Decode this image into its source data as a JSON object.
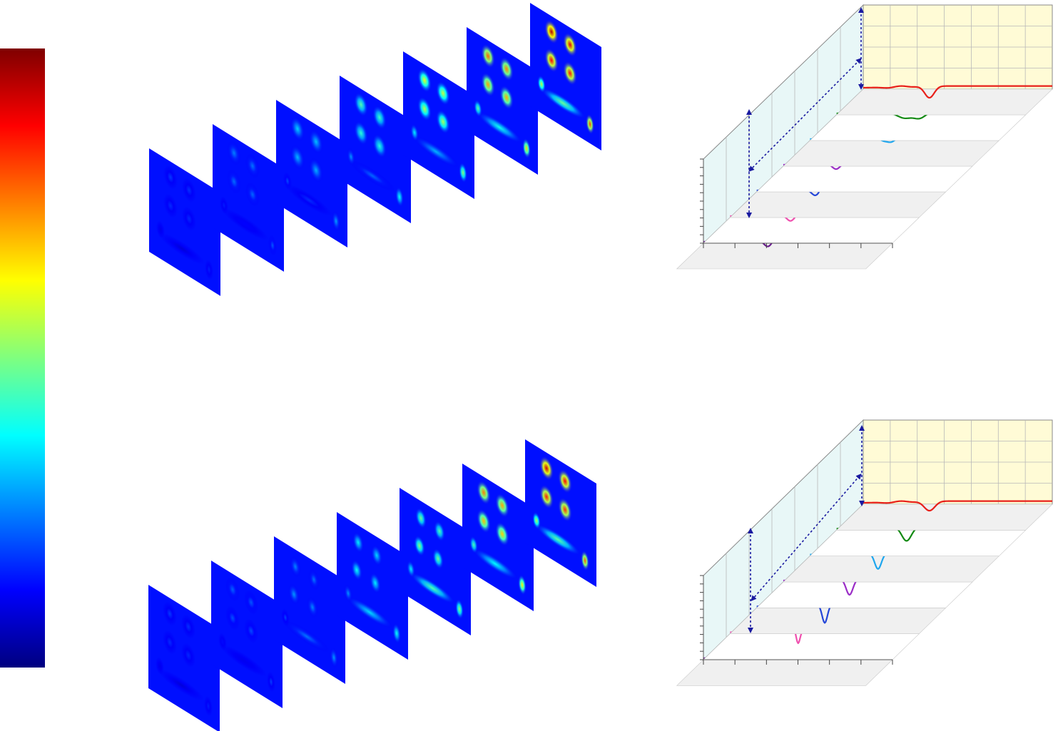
{
  "colormap": [
    "#00007f",
    "#0000ff",
    "#007fff",
    "#00ffff",
    "#7fff7f",
    "#ffff00",
    "#ff7f00",
    "#ff0000",
    "#7f0000"
  ],
  "colors": {
    "back_wall": "#fffbd6",
    "side_wall": "#e8f7f7",
    "floor_strip": "#f0f0f0",
    "grid_line": "#b8b8b8",
    "arrow": "#1a1aa0"
  },
  "field_map_groups": [
    {
      "id": "top",
      "frames": [
        {
          "intensity": 0.18,
          "mode": "low"
        },
        {
          "intensity": 0.25,
          "mode": "low"
        },
        {
          "intensity": 0.33,
          "mode": "pair"
        },
        {
          "intensity": 0.45,
          "mode": "pair"
        },
        {
          "intensity": 0.6,
          "mode": "pair"
        },
        {
          "intensity": 0.78,
          "mode": "pair"
        },
        {
          "intensity": 0.95,
          "mode": "pair"
        }
      ]
    },
    {
      "id": "bottom",
      "frames": [
        {
          "intensity": 0.18,
          "mode": "low"
        },
        {
          "intensity": 0.22,
          "mode": "low"
        },
        {
          "intensity": 0.32,
          "mode": "bar"
        },
        {
          "intensity": 0.45,
          "mode": "bar"
        },
        {
          "intensity": 0.6,
          "mode": "bar"
        },
        {
          "intensity": 0.75,
          "mode": "pair"
        },
        {
          "intensity": 0.92,
          "mode": "pair"
        }
      ]
    }
  ],
  "chart_data": [
    {
      "type": "line",
      "id": "top-waterfall",
      "title": "",
      "xlabel": "",
      "ylabel": "",
      "series": [
        {
          "color": "#e8201a",
          "features": [
            {
              "pos": 0.35,
              "amp": -0.55,
              "width": 0.025
            }
          ]
        },
        {
          "color": "#138a13",
          "features": [
            {
              "pos": 0.36,
              "amp": -0.3,
              "width": 0.04
            },
            {
              "pos": 0.44,
              "amp": -0.28,
              "width": 0.03
            }
          ]
        },
        {
          "color": "#1ea6ee",
          "features": [
            {
              "pos": 0.39,
              "amp": -0.15,
              "width": 0.02
            },
            {
              "pos": 0.43,
              "amp": -0.2,
              "width": 0.02
            }
          ]
        },
        {
          "color": "#9a2cc6",
          "features": [
            {
              "pos": 0.28,
              "amp": -0.25,
              "width": 0.02
            },
            {
              "pos": 0.35,
              "amp": 0.5,
              "width": 0.012
            }
          ]
        },
        {
          "color": "#2446d8",
          "features": [
            {
              "pos": 0.31,
              "amp": -0.3,
              "width": 0.02
            },
            {
              "pos": 0.36,
              "amp": 1.05,
              "width": 0.012
            }
          ]
        },
        {
          "color": "#ef4fae",
          "features": [
            {
              "pos": 0.32,
              "amp": -0.3,
              "width": 0.02
            },
            {
              "pos": 0.38,
              "amp": 1.7,
              "width": 0.012
            }
          ]
        },
        {
          "color": "#6a1b8f",
          "features": [
            {
              "pos": 0.34,
              "amp": -0.3,
              "width": 0.02
            },
            {
              "pos": 0.4,
              "amp": 3.2,
              "width": 0.013
            }
          ]
        }
      ]
    },
    {
      "type": "line",
      "id": "bottom-waterfall",
      "title": "",
      "xlabel": "",
      "ylabel": "",
      "series": [
        {
          "color": "#e8201a",
          "features": [
            {
              "pos": 0.35,
              "amp": -0.45,
              "width": 0.028
            }
          ]
        },
        {
          "color": "#138a13",
          "features": [
            {
              "pos": 0.37,
              "amp": -0.65,
              "width": 0.025
            }
          ]
        },
        {
          "color": "#1ea6ee",
          "features": [
            {
              "pos": 0.36,
              "amp": -0.75,
              "width": 0.018
            }
          ]
        },
        {
          "color": "#9a2cc6",
          "features": [
            {
              "pos": 0.35,
              "amp": -0.75,
              "width": 0.018
            }
          ]
        },
        {
          "color": "#2446d8",
          "features": [
            {
              "pos": 0.36,
              "amp": -0.85,
              "width": 0.014
            }
          ]
        },
        {
          "color": "#ef4fae",
          "features": [
            {
              "pos": 0.33,
              "amp": 0.2,
              "width": 0.012
            },
            {
              "pos": 0.36,
              "amp": -0.6,
              "width": 0.01
            }
          ]
        },
        {
          "color": "#6a1b8f",
          "features": [
            {
              "pos": 0.33,
              "amp": 0.35,
              "width": 0.013
            },
            {
              "pos": 0.38,
              "amp": 0.7,
              "width": 0.013
            }
          ]
        }
      ]
    }
  ]
}
